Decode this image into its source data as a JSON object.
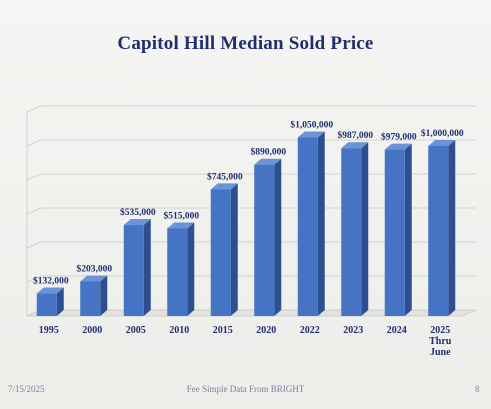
{
  "title": "Capitol Hill Median Sold Price",
  "footer": {
    "date": "7/15/2025",
    "source": "Fee Simple Data From BRIGHT",
    "page": "8"
  },
  "colors": {
    "bar_front": "#4574c4",
    "bar_side": "#2e4f8f",
    "bar_top": "#6b93d6",
    "text": "#1f2e6e",
    "grid": "#c9c9c9"
  },
  "chart_data": {
    "type": "bar",
    "title": "Capitol Hill Median Sold Price",
    "xlabel": "",
    "ylabel": "",
    "categories": [
      "1995",
      "2000",
      "2005",
      "2010",
      "2015",
      "2020",
      "2022",
      "2023",
      "2024",
      "2025\nThru\nJune"
    ],
    "values": [
      132000,
      203000,
      535000,
      515000,
      745000,
      890000,
      1050000,
      987000,
      979000,
      1000000
    ],
    "data_labels": [
      "$132,000",
      "$203,000",
      "$535,000",
      "$515,000",
      "$745,000",
      "$890,000",
      "$1,050,000",
      "$987,000",
      "$979,000",
      "$1,000,000"
    ],
    "ylim": [
      0,
      1200000
    ],
    "grid": true,
    "legend": "none"
  }
}
